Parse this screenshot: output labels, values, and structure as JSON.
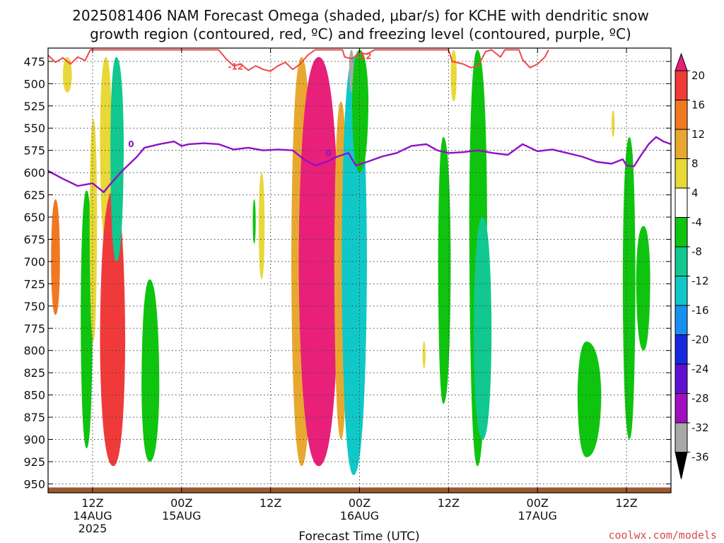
{
  "figure": {
    "title_line1": "2025081406 NAM Forecast Omega (shaded, μbar/s) for KCHE with dendritic snow",
    "title_line2": "growth region (contoured, red, ºC) and freezing level (contoured, purple, ºC)",
    "credit": "coolwx.com/models"
  },
  "chart_data": {
    "type": "heatmap",
    "title": "2025081406 NAM Forecast Omega (shaded, μbar/s) for KCHE with dendritic snow growth region (contoured, red, ºC) and freezing level (contoured, purple, ºC)",
    "xlabel": "Forecast Time (UTC)",
    "ylabel": "",
    "x_range_hours_after_2025081406": [
      0,
      84
    ],
    "y_range_hpa": [
      460,
      960
    ],
    "y_axis": "pressure, decreasing upward",
    "yticks": [
      "475",
      "500",
      "525",
      "550",
      "575",
      "600",
      "625",
      "650",
      "675",
      "700",
      "725",
      "750",
      "775",
      "800",
      "825",
      "850",
      "875",
      "900",
      "925",
      "950"
    ],
    "xticks": [
      {
        "hour": 6,
        "line1": "12Z",
        "line2": "14AUG",
        "line3": "2025"
      },
      {
        "hour": 18,
        "line1": "00Z",
        "line2": "15AUG",
        "line3": ""
      },
      {
        "hour": 30,
        "line1": "12Z",
        "line2": "",
        "line3": ""
      },
      {
        "hour": 42,
        "line1": "00Z",
        "line2": "16AUG",
        "line3": ""
      },
      {
        "hour": 54,
        "line1": "12Z",
        "line2": "",
        "line3": ""
      },
      {
        "hour": 66,
        "line1": "00Z",
        "line2": "17AUG",
        "line3": ""
      },
      {
        "hour": 78,
        "line1": "12Z",
        "line2": "",
        "line3": ""
      }
    ],
    "grid": true,
    "colorbar": {
      "labels": [
        "20",
        "16",
        "12",
        "8",
        "4",
        "-4",
        "-8",
        "-12",
        "-16",
        "-20",
        "-24",
        "-28",
        "-32",
        "-36"
      ],
      "colors": [
        "#e8207a",
        "#f03a3a",
        "#f07820",
        "#e8a830",
        "#e8d838",
        "#ffffff",
        "#0fc40f",
        "#10c890",
        "#10c8c8",
        "#1890f0",
        "#1828e0",
        "#6010d0",
        "#a010c0",
        "#a8a8a8",
        "#000000"
      ]
    },
    "freezing_level": {
      "label": "0",
      "color": "#9010c8",
      "points": [
        [
          0,
          598
        ],
        [
          2,
          607
        ],
        [
          4,
          615
        ],
        [
          6,
          612
        ],
        [
          7.5,
          622
        ],
        [
          8.5,
          612
        ],
        [
          10,
          598
        ],
        [
          12,
          582
        ],
        [
          13,
          572
        ],
        [
          15,
          568
        ],
        [
          17,
          565
        ],
        [
          18,
          570
        ],
        [
          19,
          568
        ],
        [
          21,
          567
        ],
        [
          23,
          568
        ],
        [
          25,
          574
        ],
        [
          27,
          572
        ],
        [
          29,
          575
        ],
        [
          31,
          574
        ],
        [
          33,
          575
        ],
        [
          34.5,
          585
        ],
        [
          36,
          592
        ],
        [
          37.5,
          588
        ],
        [
          39,
          582
        ],
        [
          40.5,
          578
        ],
        [
          41.5,
          592
        ],
        [
          43,
          588
        ],
        [
          45,
          582
        ],
        [
          47,
          578
        ],
        [
          49,
          570
        ],
        [
          51,
          568
        ],
        [
          52.5,
          575
        ],
        [
          54,
          578
        ],
        [
          56,
          577
        ],
        [
          58,
          575
        ],
        [
          60,
          578
        ],
        [
          62,
          580
        ],
        [
          64,
          568
        ],
        [
          66,
          576
        ],
        [
          68,
          574
        ],
        [
          70,
          578
        ],
        [
          72,
          582
        ],
        [
          74,
          588
        ],
        [
          76,
          590
        ],
        [
          77.5,
          585
        ],
        [
          78,
          592
        ],
        [
          79,
          593
        ],
        [
          80,
          580
        ],
        [
          81,
          568
        ],
        [
          82,
          560
        ],
        [
          83,
          565
        ],
        [
          84,
          568
        ]
      ]
    },
    "dgz_minus12": {
      "label": "-12",
      "color": "#f04848",
      "points": [
        [
          0,
          468
        ],
        [
          1,
          476
        ],
        [
          2,
          471
        ],
        [
          3,
          478
        ],
        [
          4,
          470
        ],
        [
          5,
          474
        ],
        [
          5.7,
          462
        ],
        [
          23,
          462
        ],
        [
          24,
          472
        ],
        [
          25,
          480
        ],
        [
          26,
          478
        ],
        [
          27,
          485
        ],
        [
          28,
          480
        ],
        [
          29,
          484
        ],
        [
          30,
          486
        ],
        [
          31,
          480
        ],
        [
          32,
          476
        ],
        [
          33,
          484
        ],
        [
          34,
          478
        ],
        [
          35,
          468
        ],
        [
          36,
          462
        ],
        [
          39.7,
          462
        ],
        [
          40,
          470
        ],
        [
          41,
          472
        ],
        [
          42,
          465
        ],
        [
          43,
          467
        ],
        [
          44,
          462
        ],
        [
          54,
          462
        ],
        [
          54.5,
          475
        ],
        [
          56,
          478
        ],
        [
          57,
          482
        ],
        [
          58,
          480
        ],
        [
          59,
          464
        ],
        [
          59.8,
          462
        ],
        [
          61,
          470
        ],
        [
          61.6,
          462
        ],
        [
          63.5,
          462
        ],
        [
          64,
          473
        ],
        [
          65,
          482
        ],
        [
          66,
          478
        ],
        [
          67,
          470
        ],
        [
          67.5,
          462
        ]
      ]
    },
    "omega_shading": [
      {
        "value": 14,
        "x": [
          0.4,
          1.0,
          1.6
        ],
        "p": [
          630,
          700,
          760
        ]
      },
      {
        "value": 6,
        "x": [
          2.0,
          2.6,
          3.2
        ],
        "p": [
          470,
          490,
          510
        ]
      },
      {
        "value": -6,
        "x": [
          4.4,
          5.2,
          6.0
        ],
        "p": [
          620,
          760,
          910
        ]
      },
      {
        "value": 4,
        "x": [
          5.6,
          6.1,
          6.6
        ],
        "p": [
          540,
          650,
          790
        ]
      },
      {
        "value": 6,
        "x": [
          7.0,
          7.8,
          8.6
        ],
        "p": [
          470,
          560,
          680
        ]
      },
      {
        "value": 18,
        "x": [
          7.0,
          8.8,
          10.4
        ],
        "p": [
          620,
          790,
          930
        ]
      },
      {
        "value": -8,
        "x": [
          8.4,
          9.2,
          10.2
        ],
        "p": [
          470,
          570,
          700
        ]
      },
      {
        "value": -6,
        "x": [
          12.6,
          13.7,
          15.0
        ],
        "p": [
          720,
          840,
          925
        ]
      },
      {
        "value": 5,
        "x": [
          28.4,
          28.8,
          29.2
        ],
        "p": [
          600,
          660,
          720
        ]
      },
      {
        "value": -5,
        "x": [
          27.6,
          27.8,
          28.0
        ],
        "p": [
          630,
          655,
          680
        ]
      },
      {
        "value": 8,
        "x": [
          32.8,
          34.2,
          35.6
        ],
        "p": [
          470,
          700,
          930
        ]
      },
      {
        "value": 22,
        "x": [
          33.8,
          36.5,
          39.2
        ],
        "p": [
          470,
          700,
          930
        ]
      },
      {
        "value": 10,
        "x": [
          38.6,
          39.5,
          40.4
        ],
        "p": [
          520,
          700,
          900
        ]
      },
      {
        "value": -12,
        "x": [
          39.6,
          41.2,
          43.0
        ],
        "p": [
          470,
          700,
          940
        ]
      },
      {
        "value": -34,
        "x": [
          40.6,
          40.9,
          41.2
        ],
        "p": [
          462,
          480,
          510
        ]
      },
      {
        "value": -6,
        "x": [
          41.0,
          42.0,
          43.2
        ],
        "p": [
          462,
          520,
          600
        ]
      },
      {
        "value": 4,
        "x": [
          54.3,
          54.7,
          55.1
        ],
        "p": [
          462,
          490,
          520
        ]
      },
      {
        "value": -6,
        "x": [
          52.6,
          53.3,
          54.3
        ],
        "p": [
          560,
          700,
          860
        ]
      },
      {
        "value": -6,
        "x": [
          56.8,
          57.9,
          59.2
        ],
        "p": [
          462,
          650,
          930
        ]
      },
      {
        "value": -10,
        "x": [
          57.4,
          58.6,
          59.8
        ],
        "p": [
          650,
          780,
          900
        ]
      },
      {
        "value": -6,
        "x": [
          71.4,
          72.6,
          74.6
        ],
        "p": [
          790,
          850,
          920
        ]
      },
      {
        "value": -6,
        "x": [
          77.5,
          78.4,
          79.2
        ],
        "p": [
          560,
          720,
          900
        ]
      },
      {
        "value": -6,
        "x": [
          79.3,
          80.3,
          81.2
        ],
        "p": [
          660,
          720,
          800
        ]
      },
      {
        "value": 5,
        "x": [
          76.0,
          76.2,
          76.4
        ],
        "p": [
          530,
          545,
          560
        ]
      },
      {
        "value": 5,
        "x": [
          50.5,
          50.7,
          50.9
        ],
        "p": [
          790,
          805,
          820
        ]
      }
    ]
  }
}
